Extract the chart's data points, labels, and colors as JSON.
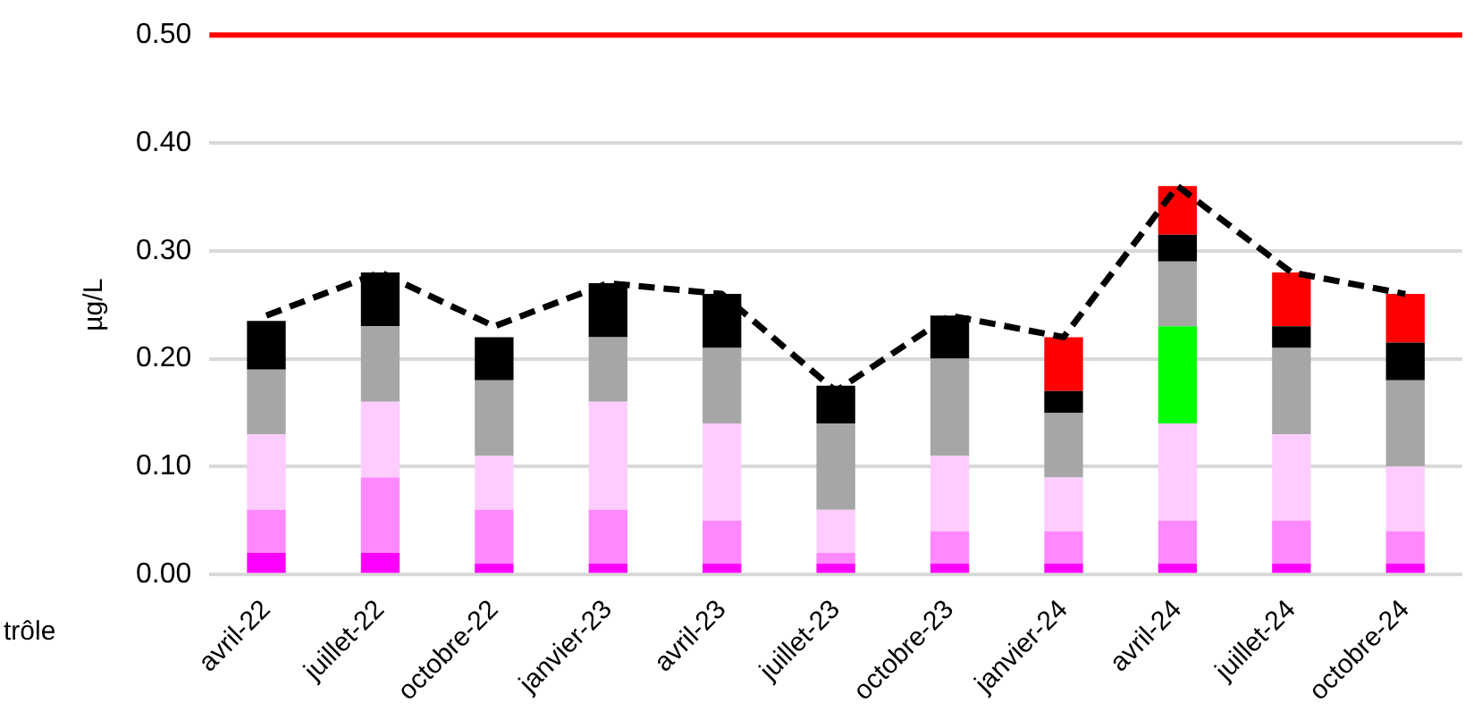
{
  "chart_data": {
    "type": "bar",
    "stacked": true,
    "ylabel": "µg/L",
    "xlabel": "trôle",
    "categories": [
      "avril-22",
      "juillet-22",
      "octobre-22",
      "janvier-23",
      "avril-23",
      "juillet-23",
      "octobre-23",
      "janvier-24",
      "avril-24",
      "juillet-24",
      "octobre-24"
    ],
    "series": [
      {
        "color": "#ff00ff",
        "values": [
          0.02,
          0.02,
          0.01,
          0.01,
          0.01,
          0.01,
          0.01,
          0.01,
          0.01,
          0.01,
          0.01
        ]
      },
      {
        "color": "#ff88ff",
        "values": [
          0.04,
          0.07,
          0.05,
          0.05,
          0.04,
          0.01,
          0.03,
          0.03,
          0.04,
          0.04,
          0.03
        ]
      },
      {
        "color": "#ffccff",
        "values": [
          0.07,
          0.07,
          0.05,
          0.1,
          0.09,
          0.04,
          0.07,
          0.05,
          0.09,
          0.08,
          0.06
        ]
      },
      {
        "color": "#00ff00",
        "values": [
          null,
          null,
          null,
          null,
          null,
          null,
          null,
          null,
          0.09,
          null,
          null
        ]
      },
      {
        "color": "#a6a6a6",
        "values": [
          0.06,
          0.07,
          0.07,
          0.06,
          0.07,
          0.08,
          0.09,
          0.06,
          0.06,
          0.08,
          0.08
        ]
      },
      {
        "color": "#000000",
        "values": [
          0.045,
          0.05,
          0.04,
          0.05,
          0.05,
          0.035,
          0.04,
          0.02,
          0.025,
          0.02,
          0.035
        ]
      },
      {
        "color": "#ff0000",
        "values": [
          null,
          null,
          null,
          null,
          null,
          null,
          null,
          0.05,
          0.045,
          0.05,
          0.045
        ]
      },
      {
        "type": "line",
        "color": "#000000",
        "line_style": "dashed",
        "values": [
          0.24,
          0.28,
          0.23,
          0.27,
          0.26,
          0.17,
          0.24,
          0.22,
          0.36,
          0.28,
          0.26
        ]
      }
    ],
    "ylim": [
      0,
      0.5
    ],
    "yticks": [
      {
        "value": 0,
        "label": "0.00"
      },
      {
        "value": 0.1,
        "label": "0.10"
      },
      {
        "value": 0.2,
        "label": "0.20"
      },
      {
        "value": 0.3,
        "label": "0.30"
      },
      {
        "value": 0.4,
        "label": "0.40"
      },
      {
        "value": 0.5,
        "label": "0.50"
      }
    ],
    "grid": "y",
    "legend": false,
    "marker": "none",
    "ref_lines": [
      {
        "axis": "y",
        "value": 0.5,
        "color": "#ff0000"
      }
    ]
  }
}
